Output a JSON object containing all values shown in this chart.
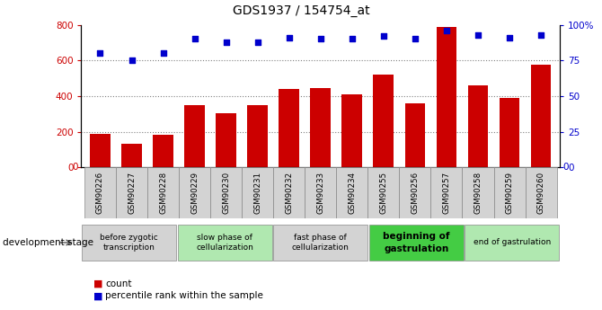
{
  "title": "GDS1937 / 154754_at",
  "samples": [
    "GSM90226",
    "GSM90227",
    "GSM90228",
    "GSM90229",
    "GSM90230",
    "GSM90231",
    "GSM90232",
    "GSM90233",
    "GSM90234",
    "GSM90255",
    "GSM90256",
    "GSM90257",
    "GSM90258",
    "GSM90259",
    "GSM90260"
  ],
  "counts": [
    190,
    135,
    185,
    350,
    305,
    350,
    440,
    445,
    410,
    520,
    360,
    790,
    460,
    390,
    575
  ],
  "percentiles": [
    80,
    75,
    80,
    90,
    88,
    88,
    91,
    90,
    90,
    92,
    90,
    96,
    93,
    91,
    93
  ],
  "bar_color": "#cc0000",
  "dot_color": "#0000cc",
  "left_ylim": [
    0,
    800
  ],
  "right_ylim": [
    0,
    100
  ],
  "left_yticks": [
    0,
    200,
    400,
    600,
    800
  ],
  "right_yticks": [
    0,
    25,
    50,
    75,
    100
  ],
  "right_yticklabels": [
    "0",
    "25",
    "50",
    "75",
    "100%"
  ],
  "stages": [
    {
      "label": "before zygotic\ntranscription",
      "start": 0,
      "end": 3,
      "color": "#d3d3d3",
      "bold": false
    },
    {
      "label": "slow phase of\ncellularization",
      "start": 3,
      "end": 6,
      "color": "#b0e8b0",
      "bold": false
    },
    {
      "label": "fast phase of\ncellularization",
      "start": 6,
      "end": 9,
      "color": "#d3d3d3",
      "bold": false
    },
    {
      "label": "beginning of\ngastrulation",
      "start": 9,
      "end": 12,
      "color": "#44cc44",
      "bold": true
    },
    {
      "label": "end of gastrulation",
      "start": 12,
      "end": 15,
      "color": "#b0e8b0",
      "bold": false
    }
  ],
  "legend_count_label": "count",
  "legend_pct_label": "percentile rank within the sample",
  "dev_stage_label": "development stage",
  "bg_color": "#ffffff",
  "tick_label_color_left": "#cc0000",
  "tick_label_color_right": "#0000cc",
  "tick_box_color": "#d3d3d3"
}
